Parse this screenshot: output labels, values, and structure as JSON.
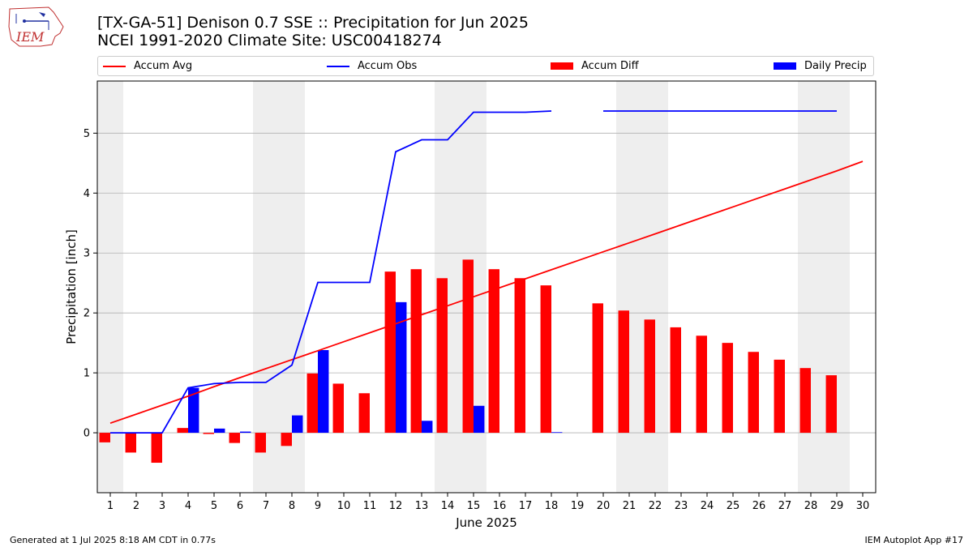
{
  "header": {
    "logo_text": "IEM",
    "title_line1": "[TX-GA-51] Denison 0.7 SSE :: Precipitation for Jun 2025",
    "title_line2": "NCEI 1991-2020 Climate Site: USC00418274"
  },
  "legend": {
    "accum_avg": "Accum Avg",
    "accum_obs": "Accum Obs",
    "accum_diff": "Accum Diff",
    "daily_precip": "Daily Precip"
  },
  "colors": {
    "accum_avg": "#ff0000",
    "accum_obs": "#0000ff",
    "accum_diff": "#ff0000",
    "daily_precip": "#0000ff",
    "weekend_shade": "#eeeeee",
    "grid": "#b0b0b0"
  },
  "footer": {
    "left": "Generated at 1 Jul 2025 8:18 AM CDT in 0.77s",
    "right": "IEM Autoplot App #17"
  },
  "chart_data": {
    "type": "bar",
    "xlabel": "June 2025",
    "ylabel": "Precipitation [inch]",
    "xlim": [
      0.5,
      30.5
    ],
    "ylim": [
      -1.0,
      5.87
    ],
    "yticks": [
      0,
      1,
      2,
      3,
      4,
      5
    ],
    "grid": "horizontal",
    "legend_position": "top",
    "shaded_day_ranges": [
      [
        0.5,
        1.5
      ],
      [
        6.5,
        8.5
      ],
      [
        13.5,
        15.5
      ],
      [
        20.5,
        22.5
      ],
      [
        27.5,
        29.5
      ]
    ],
    "days": [
      1,
      2,
      3,
      4,
      5,
      6,
      7,
      8,
      9,
      10,
      11,
      12,
      13,
      14,
      15,
      16,
      17,
      18,
      19,
      20,
      21,
      22,
      23,
      24,
      25,
      26,
      27,
      28,
      29,
      30
    ],
    "series": [
      {
        "name": "Accum Avg",
        "kind": "line",
        "values": [
          0.16,
          0.31,
          0.46,
          0.61,
          0.77,
          0.92,
          1.07,
          1.22,
          1.37,
          1.52,
          1.67,
          1.82,
          1.97,
          2.12,
          2.27,
          2.42,
          2.57,
          2.72,
          2.87,
          3.02,
          3.17,
          3.32,
          3.47,
          3.62,
          3.77,
          3.92,
          4.07,
          4.22,
          4.37,
          4.53
        ]
      },
      {
        "name": "Accum Obs",
        "kind": "line",
        "values": [
          0.0,
          0.0,
          0.0,
          0.75,
          0.82,
          0.84,
          0.84,
          1.13,
          2.51,
          2.51,
          2.51,
          4.69,
          4.89,
          4.89,
          5.35,
          5.35,
          5.35,
          5.37,
          null,
          5.37,
          5.37,
          5.37,
          5.37,
          5.37,
          5.37,
          5.37,
          5.37,
          5.37,
          5.37,
          null
        ]
      },
      {
        "name": "Accum Diff",
        "kind": "bar",
        "values": [
          -0.16,
          -0.33,
          -0.5,
          0.08,
          -0.02,
          -0.17,
          -0.33,
          -0.22,
          0.99,
          0.82,
          0.66,
          2.69,
          2.73,
          2.58,
          2.89,
          2.73,
          2.58,
          2.46,
          null,
          2.16,
          2.04,
          1.89,
          1.76,
          1.62,
          1.5,
          1.35,
          1.22,
          1.08,
          0.96,
          null
        ]
      },
      {
        "name": "Daily Precip",
        "kind": "bar",
        "values": [
          0,
          0,
          0,
          0.75,
          0.07,
          0.02,
          0,
          0.29,
          1.38,
          0,
          0,
          2.18,
          0.2,
          0,
          0.45,
          0,
          0,
          0.01,
          null,
          0,
          0,
          0,
          0,
          0,
          0,
          0,
          0,
          0,
          0,
          null
        ]
      }
    ]
  }
}
